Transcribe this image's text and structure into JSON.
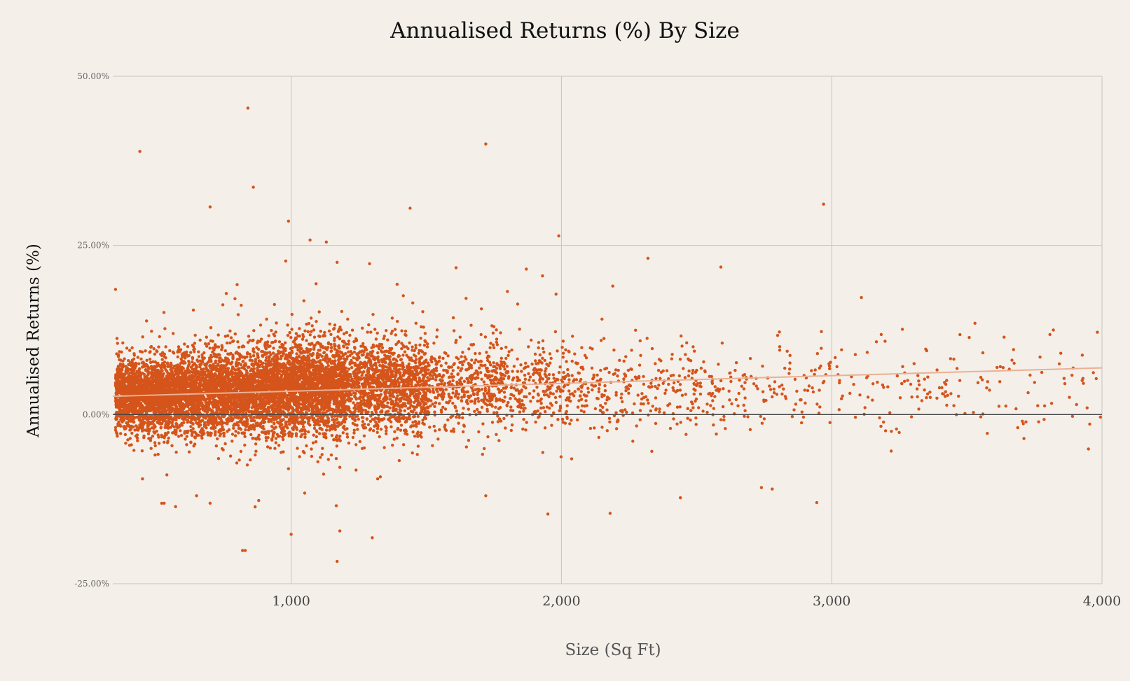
{
  "chart_data": {
    "type": "scatter",
    "title": "Annualised Returns (%) By Size",
    "xlabel": "Size (Sq Ft)",
    "ylabel": "Annualised Returns (%)",
    "xlim": [
      340,
      4000
    ],
    "ylim": [
      -25,
      50
    ],
    "x_ticks": [
      1000,
      2000,
      3000,
      4000
    ],
    "x_tick_labels": [
      "1,000",
      "2,000",
      "3,000",
      "4,000"
    ],
    "y_ticks": [
      50,
      25,
      0,
      -25
    ],
    "y_tick_labels": [
      "50.00%",
      "25.00%",
      "0.00%",
      "-25.00%"
    ],
    "grid": true,
    "legend": "none",
    "colors": {
      "point": "#d4541b",
      "trendline": "#e9b193",
      "zero_line": "#444444",
      "grid": "#c8c3be",
      "background": "#f4efe9"
    },
    "trendline": {
      "x": [
        340,
        4000
      ],
      "y": [
        2.7,
        6.9
      ]
    },
    "outliers": {
      "x": [
        840,
        440,
        1720,
        860,
        700,
        2970,
        1440,
        990,
        1070,
        1130,
        1990,
        350,
        980,
        1170,
        2320,
        1610,
        2590,
        1870,
        1930,
        1980,
        2190,
        3110,
        1800,
        800,
        760,
        1290,
        1450,
        1540,
        1600,
        1750,
        2150,
        2410,
        2800,
        3530,
        3820,
        450,
        540,
        650,
        700,
        880,
        990,
        1050,
        1120,
        1180,
        1240,
        1330,
        1400,
        1720,
        1950,
        2180,
        2440,
        2740,
        2780,
        3220,
        530,
        820,
        1000,
        1180,
        1300,
        1320,
        830,
        1170
      ],
      "y": [
        45.3,
        38.9,
        40.0,
        33.6,
        30.7,
        31.1,
        30.5,
        28.6,
        25.8,
        25.5,
        26.4,
        18.5,
        22.7,
        22.5,
        23.1,
        21.7,
        21.8,
        21.5,
        20.5,
        17.8,
        19.0,
        17.3,
        18.2,
        19.2,
        17.9,
        22.3,
        16.5,
        12.5,
        14.3,
        13.0,
        14.1,
        8.9,
        11.7,
        13.5,
        12.5,
        -9.5,
        -8.9,
        -12.0,
        -13.1,
        -12.7,
        -8.0,
        -11.6,
        -8.8,
        -7.8,
        -8.2,
        -9.2,
        -6.8,
        -12.0,
        -14.7,
        -14.6,
        -12.3,
        -10.8,
        -11.0,
        -5.4,
        -13.1,
        -20.1,
        -17.7,
        -17.2,
        -18.2,
        -9.5,
        -20.1,
        -21.7
      ]
    },
    "bulk_distribution": {
      "description_values": "dense cloud of returns mostly between -5% and 15%, heaviest from 400 to 1,500 sq ft, thinning toward 4,000 sq ft",
      "x_range": [
        350,
        4000
      ],
      "y_center_range": [
        2.5,
        5.0
      ]
    }
  }
}
